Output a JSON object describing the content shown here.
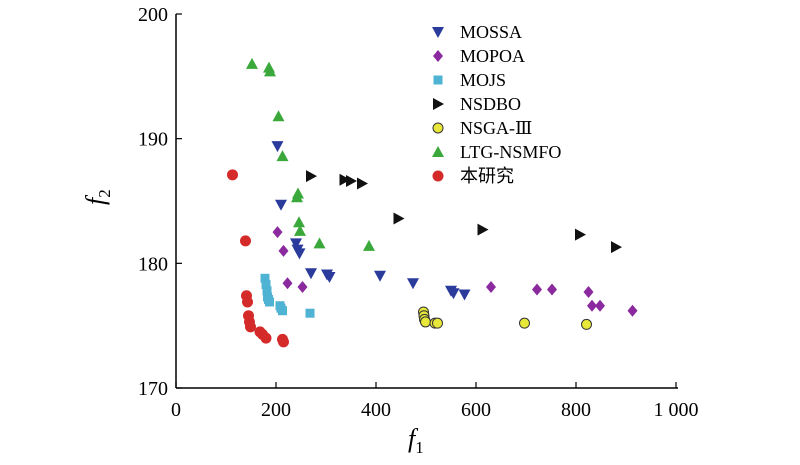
{
  "chart_data": {
    "type": "scatter",
    "xlabel": "f",
    "xlabel_sub": "1",
    "ylabel": "f",
    "ylabel_sub": "2",
    "xlim": [
      0,
      1000
    ],
    "ylim": [
      170,
      200
    ],
    "xticks": [
      0,
      200,
      400,
      600,
      800,
      1000
    ],
    "xtick_labels": [
      "0",
      "200",
      "400",
      "600",
      "800",
      "1 000"
    ],
    "yticks": [
      170,
      180,
      190,
      200
    ],
    "ytick_labels": [
      "170",
      "180",
      "190",
      "200"
    ],
    "grid": false,
    "legend_position": "top-right",
    "series": [
      {
        "name": "MOSSA",
        "marker": "triangle-down",
        "color": "#2a3b9c",
        "points": [
          [
            203,
            189.4
          ],
          [
            210,
            184.7
          ],
          [
            240,
            181.6
          ],
          [
            243,
            181.1
          ],
          [
            247,
            180.8
          ],
          [
            270,
            179.2
          ],
          [
            302,
            179.1
          ],
          [
            307,
            178.9
          ],
          [
            408,
            179.0
          ],
          [
            474,
            178.4
          ],
          [
            550,
            177.8
          ],
          [
            555,
            177.6
          ],
          [
            577,
            177.5
          ]
        ]
      },
      {
        "name": "MOPOA",
        "marker": "diamond",
        "color": "#8a2a9e",
        "points": [
          [
            203,
            182.5
          ],
          [
            215,
            181.0
          ],
          [
            223,
            178.4
          ],
          [
            253,
            178.1
          ],
          [
            630,
            178.1
          ],
          [
            722,
            177.9
          ],
          [
            752,
            177.9
          ],
          [
            825,
            177.7
          ],
          [
            832,
            176.6
          ],
          [
            848,
            176.6
          ],
          [
            913,
            176.2
          ]
        ]
      },
      {
        "name": "MOJS",
        "marker": "square",
        "color": "#4fb3d3",
        "points": [
          [
            178,
            178.8
          ],
          [
            180,
            178.3
          ],
          [
            182,
            177.8
          ],
          [
            183,
            177.3
          ],
          [
            185,
            177.1
          ],
          [
            187,
            176.9
          ],
          [
            208,
            176.6
          ],
          [
            210,
            176.4
          ],
          [
            213,
            176.2
          ],
          [
            268,
            176.0
          ]
        ]
      },
      {
        "name": "NSDBO",
        "marker": "triangle-right",
        "color": "#111111",
        "points": [
          [
            270,
            187.0
          ],
          [
            337,
            186.7
          ],
          [
            350,
            186.6
          ],
          [
            372,
            186.4
          ],
          [
            445,
            183.6
          ],
          [
            613,
            182.7
          ],
          [
            808,
            182.3
          ],
          [
            880,
            181.3
          ]
        ]
      },
      {
        "name": "NSGA-Ⅲ",
        "marker": "circle-open",
        "color": "#e8e83a",
        "points": [
          [
            495,
            176.1
          ],
          [
            496,
            175.8
          ],
          [
            497,
            175.5
          ],
          [
            499,
            175.3
          ],
          [
            518,
            175.2
          ],
          [
            523,
            175.2
          ],
          [
            697,
            175.2
          ],
          [
            821,
            175.1
          ]
        ]
      },
      {
        "name": "LTG-NSMFO",
        "marker": "triangle-up",
        "color": "#3aa83a",
        "points": [
          [
            152,
            196.0
          ],
          [
            186,
            195.7
          ],
          [
            188,
            195.4
          ],
          [
            205,
            191.8
          ],
          [
            213,
            188.6
          ],
          [
            242,
            185.3
          ],
          [
            244,
            185.6
          ],
          [
            246,
            183.3
          ],
          [
            248,
            182.6
          ],
          [
            287,
            181.6
          ],
          [
            386,
            181.4
          ]
        ]
      },
      {
        "name": "本研究",
        "marker": "circle",
        "color": "#d42a2a",
        "points": [
          [
            113,
            187.1
          ],
          [
            139,
            181.8
          ],
          [
            141,
            177.4
          ],
          [
            143,
            176.9
          ],
          [
            145,
            175.8
          ],
          [
            147,
            175.3
          ],
          [
            149,
            174.9
          ],
          [
            168,
            174.5
          ],
          [
            173,
            174.3
          ],
          [
            180,
            174.0
          ],
          [
            213,
            173.9
          ],
          [
            215,
            173.7
          ]
        ]
      }
    ]
  }
}
